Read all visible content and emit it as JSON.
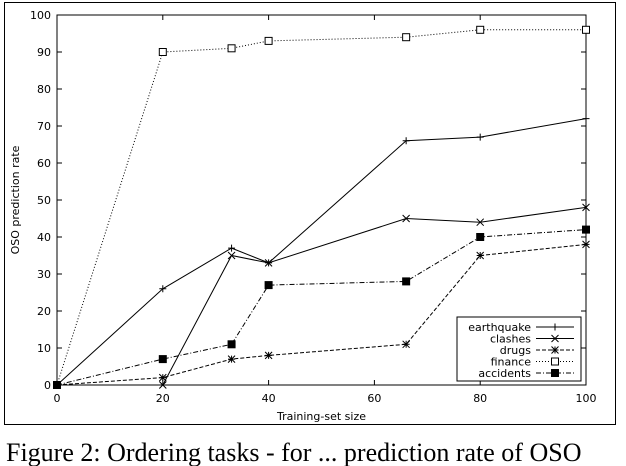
{
  "chart_data": {
    "type": "line",
    "xlabel": "Training-set size",
    "ylabel": "OSO prediction rate",
    "xlim": [
      0,
      100
    ],
    "ylim": [
      0,
      100
    ],
    "xticks": [
      0,
      20,
      40,
      60,
      80,
      100
    ],
    "yticks": [
      0,
      10,
      20,
      30,
      40,
      50,
      60,
      70,
      80,
      90,
      100
    ],
    "grid": false,
    "legend_position": "bottom-right",
    "series": [
      {
        "name": "earthquake",
        "marker": "plus",
        "dash": "solid",
        "x": [
          0,
          20,
          33,
          40,
          66,
          80,
          100
        ],
        "y": [
          0,
          26,
          37,
          33,
          66,
          67,
          72
        ]
      },
      {
        "name": "clashes",
        "marker": "cross",
        "dash": "solid",
        "x": [
          0,
          20,
          33,
          40,
          66,
          80,
          100
        ],
        "y": [
          0,
          0,
          35,
          33,
          45,
          44,
          48
        ]
      },
      {
        "name": "drugs",
        "marker": "star",
        "dash": "dashed",
        "x": [
          0,
          20,
          33,
          40,
          66,
          80,
          100
        ],
        "y": [
          0,
          2,
          7,
          8,
          11,
          35,
          38
        ]
      },
      {
        "name": "finance",
        "marker": "open-square",
        "dash": "dotted",
        "x": [
          0,
          20,
          33,
          40,
          66,
          80,
          100
        ],
        "y": [
          0,
          90,
          91,
          93,
          94,
          96,
          96
        ]
      },
      {
        "name": "accidents",
        "marker": "filled-square",
        "dash": "dashdot",
        "x": [
          0,
          20,
          33,
          40,
          66,
          80,
          100
        ],
        "y": [
          0,
          7,
          11,
          27,
          28,
          40,
          42
        ]
      }
    ]
  },
  "caption": "Figure 2:  Ordering tasks - for ... prediction rate of OSO"
}
